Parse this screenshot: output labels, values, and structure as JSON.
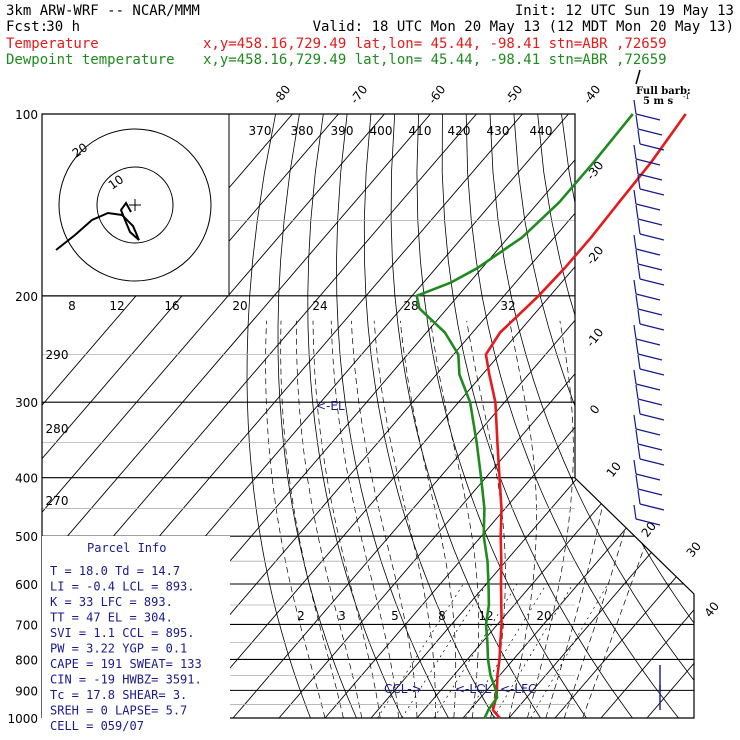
{
  "header": {
    "model": "3km ARW-WRF -- NCAR/MMM",
    "init": "Init: 12 UTC Sun 19 May 13",
    "fcst_label": "Fcst:",
    "fcst_value": "30 h",
    "valid": "Valid: 18 UTC Mon 20 May 13 (12 MDT Mon 20 May 13)",
    "temp_label": "Temperature",
    "dew_label": "Dewpoint temperature",
    "loc_line": "x,y=458.16,729.49   lat,lon= 45.44, -98.41   stn=ABR ,72659",
    "barb_legend_1": "Full barb:",
    "barb_legend_2": "5 m s"
  },
  "colors": {
    "temperature": "#e41a1c",
    "dewpoint": "#1f8a1f",
    "wind": "#1a1a8c",
    "frame": "#000000",
    "parcel_text": "#1a1a8c"
  },
  "chart_data": {
    "type": "line",
    "title": "",
    "diagram": "skew-T log-P",
    "pressure_ticks": [
      100,
      200,
      300,
      400,
      500,
      600,
      700,
      800,
      900,
      1000
    ],
    "pressure_range": [
      100,
      1000
    ],
    "isotherm_labels": [
      "-80",
      "-70",
      "-60",
      "-50",
      "-40",
      "-30",
      "-20",
      "-10",
      "0",
      "10",
      "20",
      "30",
      "40"
    ],
    "theta_labels": [
      "370",
      "380",
      "390",
      "400",
      "410",
      "420",
      "430",
      "440",
      "290",
      "280",
      "270"
    ],
    "mixing_ratio_labels": [
      "2",
      "3",
      "5",
      "8",
      "12",
      "20"
    ],
    "level_labels": {
      "el": "<-EL",
      "ccl": "CCL->",
      "lcl": "<-LCL",
      "lfc": "<-LFC"
    },
    "series": [
      {
        "name": "Temperature",
        "points": [
          [
            1000,
            18.0
          ],
          [
            970,
            15.0
          ],
          [
            925,
            13.4
          ],
          [
            900,
            12.2
          ],
          [
            850,
            9.5
          ],
          [
            800,
            7.0
          ],
          [
            750,
            4.0
          ],
          [
            700,
            0.9
          ],
          [
            650,
            -2.8
          ],
          [
            600,
            -6.8
          ],
          [
            550,
            -11.0
          ],
          [
            500,
            -15.8
          ],
          [
            450,
            -20.8
          ],
          [
            400,
            -27.0
          ],
          [
            350,
            -34.0
          ],
          [
            300,
            -42.0
          ],
          [
            270,
            -48.5
          ],
          [
            250,
            -53.0
          ],
          [
            230,
            -54.0
          ],
          [
            210,
            -53.0
          ],
          [
            200,
            -52.5
          ],
          [
            180,
            -52.0
          ],
          [
            160,
            -52.0
          ],
          [
            140,
            -52.5
          ],
          [
            120,
            -53.0
          ],
          [
            100,
            -54.5
          ]
        ]
      },
      {
        "name": "Dewpoint temperature",
        "points": [
          [
            1000,
            14.7
          ],
          [
            970,
            14.0
          ],
          [
            925,
            13.6
          ],
          [
            900,
            12.0
          ],
          [
            850,
            8.0
          ],
          [
            800,
            4.5
          ],
          [
            750,
            1.2
          ],
          [
            700,
            -2.5
          ],
          [
            650,
            -5.5
          ],
          [
            600,
            -9.5
          ],
          [
            550,
            -14.0
          ],
          [
            500,
            -19.5
          ],
          [
            450,
            -24.5
          ],
          [
            400,
            -31.0
          ],
          [
            350,
            -38.5
          ],
          [
            300,
            -47.5
          ],
          [
            270,
            -55.0
          ],
          [
            250,
            -59.0
          ],
          [
            230,
            -66.0
          ],
          [
            210,
            -76.0
          ],
          [
            200,
            -79.0
          ],
          [
            190,
            -74.0
          ],
          [
            180,
            -71.0
          ],
          [
            160,
            -67.0
          ],
          [
            140,
            -65.5
          ],
          [
            120,
            -65.5
          ],
          [
            100,
            -66.0
          ]
        ]
      }
    ],
    "hodograph": {
      "rings_kts": [
        10,
        20
      ],
      "ring_labels": [
        "10",
        "20"
      ],
      "units": "kts",
      "speed_ticks": [
        "8",
        "12",
        "16",
        "20",
        "24",
        "28",
        "32"
      ]
    }
  },
  "parcel_info": {
    "title": "Parcel Info",
    "rows": [
      "T  =   18.0  Td =  14.7",
      "LI =   -0.4  LCL =  893.",
      "K  =     33  LFC =  893.",
      "TT =     47  EL  =  304.",
      "SVI =   1.1  CCL =  895.",
      "PW =   3.22  YGP =   0.1",
      "CAPE =   191  SWEAT=   133",
      "CIN =    -19  HWBZ= 3591.",
      "Tc =   17.8  SHEAR=    3.",
      "SREH =    0  LAPSE=   5.7",
      "CELL = 059/07"
    ]
  }
}
